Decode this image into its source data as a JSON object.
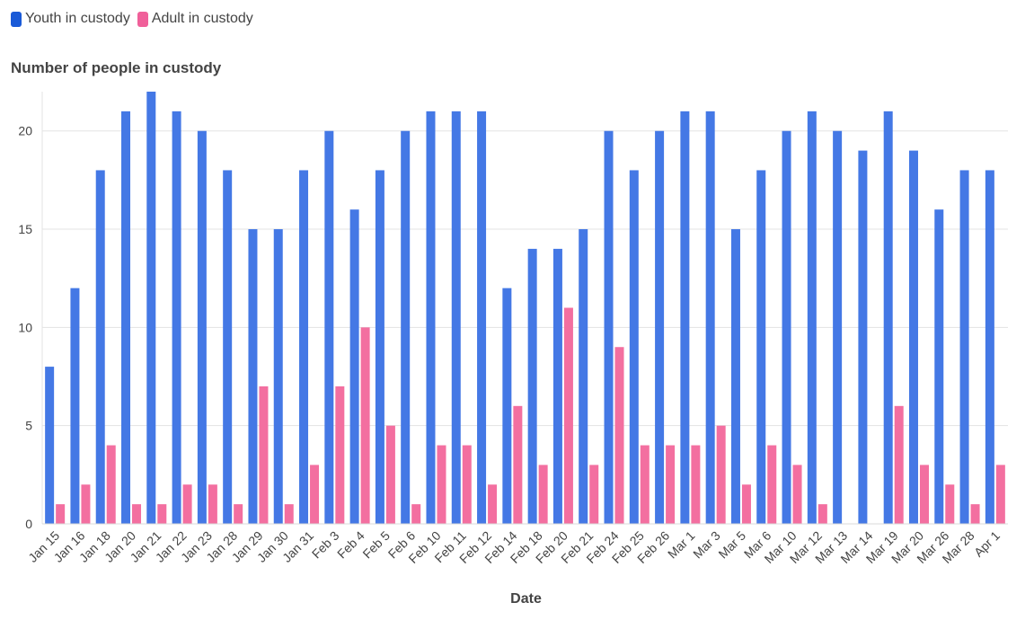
{
  "chart_data": {
    "type": "bar",
    "title": "Number of people in custody",
    "xlabel": "Date",
    "ylabel": "",
    "ylim": [
      0,
      22
    ],
    "yticks": [
      0,
      5,
      10,
      15,
      20
    ],
    "grid": true,
    "legend_position": "top-left",
    "categories": [
      "Jan 15",
      "Jan 16",
      "Jan 18",
      "Jan 20",
      "Jan 21",
      "Jan 22",
      "Jan 23",
      "Jan 28",
      "Jan 29",
      "Jan 30",
      "Jan 31",
      "Feb 3",
      "Feb 4",
      "Feb 5",
      "Feb 6",
      "Feb 10",
      "Feb 11",
      "Feb 12",
      "Feb 14",
      "Feb 18",
      "Feb 20",
      "Feb 21",
      "Feb 24",
      "Feb 25",
      "Feb 26",
      "Mar 1",
      "Mar 3",
      "Mar 5",
      "Mar 6",
      "Mar 10",
      "Mar 12",
      "Mar 13",
      "Mar 14",
      "Mar 19",
      "Mar 20",
      "Mar 26",
      "Mar 28",
      "Apr 1"
    ],
    "series": [
      {
        "name": "Youth in custody",
        "color": "#4478e5",
        "values": [
          8,
          12,
          18,
          21,
          22,
          21,
          20,
          18,
          15,
          15,
          18,
          20,
          16,
          18,
          20,
          21,
          21,
          21,
          12,
          14,
          14,
          15,
          20,
          18,
          20,
          21,
          21,
          15,
          18,
          20,
          21,
          20,
          19,
          21,
          19,
          16,
          18,
          18
        ]
      },
      {
        "name": "Adult in custody",
        "color": "#f36fa0",
        "values": [
          1,
          2,
          4,
          1,
          1,
          2,
          2,
          1,
          7,
          1,
          3,
          7,
          10,
          5,
          1,
          4,
          4,
          2,
          6,
          3,
          11,
          3,
          9,
          4,
          4,
          4,
          5,
          2,
          4,
          3,
          1,
          0,
          0,
          6,
          3,
          2,
          1,
          3
        ]
      }
    ]
  },
  "legend": {
    "youth_label": "Youth in custody",
    "adult_label": "Adult in custody",
    "youth_color": "#1a5ad7",
    "adult_color": "#f0609a"
  }
}
